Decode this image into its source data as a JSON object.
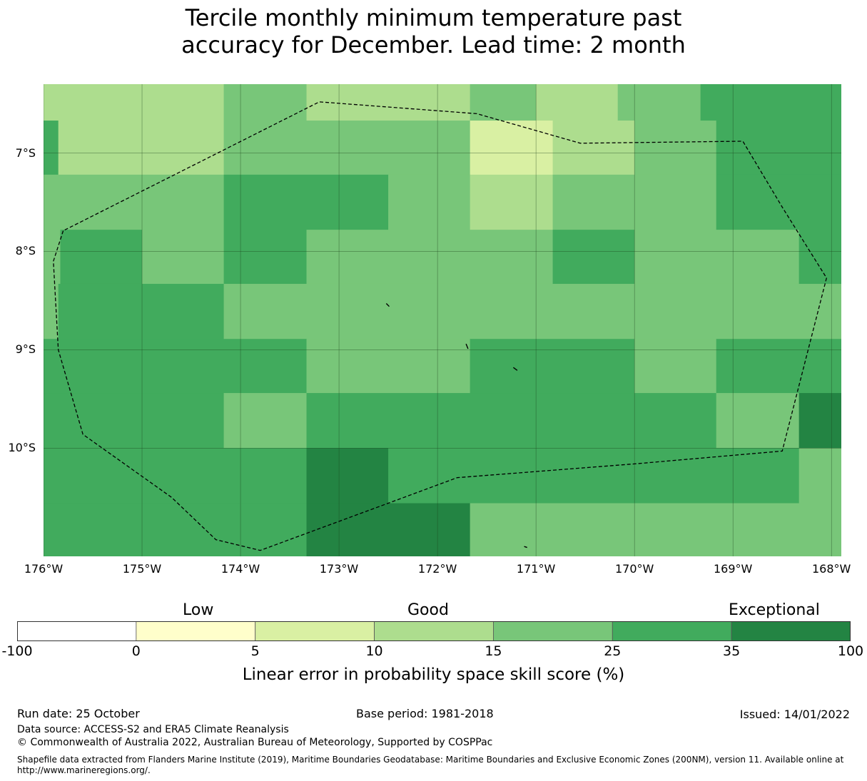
{
  "title_line1": "Tercile monthly minimum temperature past",
  "title_line2": "accuracy for December. Lead time: 2 month",
  "chart_data": {
    "type": "heatmap",
    "lon_range": [
      -176.0,
      -167.9
    ],
    "lat_range": [
      -11.1,
      -6.3
    ],
    "lat_ticks": [
      "7°S",
      "8°S",
      "9°S",
      "10°S"
    ],
    "lon_ticks": [
      "176°W",
      "175°W",
      "174°W",
      "173°W",
      "172°W",
      "171°W",
      "170°W",
      "169°W",
      "168°W"
    ],
    "cells": [
      {
        "lon": [
          -176.0,
          -174.17
        ],
        "lat": [
          -6.67,
          -6.3
        ],
        "value": 12
      },
      {
        "lon": [
          -174.17,
          -173.33
        ],
        "lat": [
          -6.67,
          -6.3
        ],
        "value": 18
      },
      {
        "lon": [
          -173.33,
          -171.67
        ],
        "lat": [
          -6.67,
          -6.3
        ],
        "value": 12
      },
      {
        "lon": [
          -171.67,
          -171.0
        ],
        "lat": [
          -6.67,
          -6.3
        ],
        "value": 18
      },
      {
        "lon": [
          -171.0,
          -170.17
        ],
        "lat": [
          -6.67,
          -6.3
        ],
        "value": 12
      },
      {
        "lon": [
          -170.17,
          -169.33
        ],
        "lat": [
          -6.67,
          -6.3
        ],
        "value": 18
      },
      {
        "lon": [
          -169.33,
          -167.9
        ],
        "lat": [
          -6.67,
          -6.3
        ],
        "value": 28
      },
      {
        "lon": [
          -176.0,
          -175.85
        ],
        "lat": [
          -7.22,
          -6.67
        ],
        "value": 28
      },
      {
        "lon": [
          -175.85,
          -174.17
        ],
        "lat": [
          -7.22,
          -6.67
        ],
        "value": 12
      },
      {
        "lon": [
          -174.17,
          -171.67
        ],
        "lat": [
          -7.22,
          -6.67
        ],
        "value": 18
      },
      {
        "lon": [
          -171.67,
          -170.83
        ],
        "lat": [
          -7.22,
          -6.67
        ],
        "value": 7
      },
      {
        "lon": [
          -170.83,
          -170.0
        ],
        "lat": [
          -7.22,
          -6.67
        ],
        "value": 12
      },
      {
        "lon": [
          -170.0,
          -169.17
        ],
        "lat": [
          -7.22,
          -6.67
        ],
        "value": 18
      },
      {
        "lon": [
          -169.17,
          -167.9
        ],
        "lat": [
          -7.22,
          -6.67
        ],
        "value": 28
      },
      {
        "lon": [
          -176.0,
          -174.17
        ],
        "lat": [
          -7.78,
          -7.22
        ],
        "value": 18
      },
      {
        "lon": [
          -174.17,
          -172.5
        ],
        "lat": [
          -7.78,
          -7.22
        ],
        "value": 28
      },
      {
        "lon": [
          -172.5,
          -171.67
        ],
        "lat": [
          -7.78,
          -7.22
        ],
        "value": 18
      },
      {
        "lon": [
          -171.67,
          -170.83
        ],
        "lat": [
          -7.78,
          -7.22
        ],
        "value": 12
      },
      {
        "lon": [
          -170.83,
          -169.17
        ],
        "lat": [
          -7.78,
          -7.22
        ],
        "value": 18
      },
      {
        "lon": [
          -169.17,
          -167.9
        ],
        "lat": [
          -7.78,
          -7.22
        ],
        "value": 28
      },
      {
        "lon": [
          -176.0,
          -175.83
        ],
        "lat": [
          -8.33,
          -7.78
        ],
        "value": 18
      },
      {
        "lon": [
          -175.83,
          -175.0
        ],
        "lat": [
          -8.33,
          -7.78
        ],
        "value": 28
      },
      {
        "lon": [
          -175.0,
          -174.17
        ],
        "lat": [
          -8.33,
          -7.78
        ],
        "value": 18
      },
      {
        "lon": [
          -174.17,
          -173.33
        ],
        "lat": [
          -8.33,
          -7.78
        ],
        "value": 28
      },
      {
        "lon": [
          -173.33,
          -170.83
        ],
        "lat": [
          -8.33,
          -7.78
        ],
        "value": 18
      },
      {
        "lon": [
          -170.83,
          -170.0
        ],
        "lat": [
          -8.33,
          -7.78
        ],
        "value": 28
      },
      {
        "lon": [
          -170.0,
          -168.33
        ],
        "lat": [
          -8.33,
          -7.78
        ],
        "value": 18
      },
      {
        "lon": [
          -168.33,
          -167.9
        ],
        "lat": [
          -8.33,
          -7.78
        ],
        "value": 28
      },
      {
        "lon": [
          -176.0,
          -175.85
        ],
        "lat": [
          -8.89,
          -8.33
        ],
        "value": 18
      },
      {
        "lon": [
          -175.85,
          -174.17
        ],
        "lat": [
          -8.89,
          -8.33
        ],
        "value": 28
      },
      {
        "lon": [
          -174.17,
          -167.9
        ],
        "lat": [
          -8.89,
          -8.33
        ],
        "value": 18
      },
      {
        "lon": [
          -176.0,
          -173.33
        ],
        "lat": [
          -9.44,
          -8.89
        ],
        "value": 28
      },
      {
        "lon": [
          -173.33,
          -171.67
        ],
        "lat": [
          -9.44,
          -8.89
        ],
        "value": 18
      },
      {
        "lon": [
          -171.67,
          -170.0
        ],
        "lat": [
          -9.44,
          -8.89
        ],
        "value": 28
      },
      {
        "lon": [
          -170.0,
          -169.17
        ],
        "lat": [
          -9.44,
          -8.89
        ],
        "value": 18
      },
      {
        "lon": [
          -169.17,
          -167.9
        ],
        "lat": [
          -9.44,
          -8.89
        ],
        "value": 28
      },
      {
        "lon": [
          -176.0,
          -174.17
        ],
        "lat": [
          -10.0,
          -9.44
        ],
        "value": 28
      },
      {
        "lon": [
          -174.17,
          -173.33
        ],
        "lat": [
          -10.0,
          -9.44
        ],
        "value": 18
      },
      {
        "lon": [
          -173.33,
          -169.17
        ],
        "lat": [
          -10.0,
          -9.44
        ],
        "value": 28
      },
      {
        "lon": [
          -169.17,
          -168.33
        ],
        "lat": [
          -10.0,
          -9.44
        ],
        "value": 18
      },
      {
        "lon": [
          -168.33,
          -167.9
        ],
        "lat": [
          -10.0,
          -9.44
        ],
        "value": 40
      },
      {
        "lon": [
          -176.0,
          -173.33
        ],
        "lat": [
          -10.56,
          -10.0
        ],
        "value": 28
      },
      {
        "lon": [
          -173.33,
          -172.5
        ],
        "lat": [
          -10.56,
          -10.0
        ],
        "value": 40
      },
      {
        "lon": [
          -172.5,
          -168.33
        ],
        "lat": [
          -10.56,
          -10.0
        ],
        "value": 28
      },
      {
        "lon": [
          -168.33,
          -167.9
        ],
        "lat": [
          -10.56,
          -10.0
        ],
        "value": 18
      },
      {
        "lon": [
          -176.0,
          -173.33
        ],
        "lat": [
          -11.1,
          -10.56
        ],
        "value": 28
      },
      {
        "lon": [
          -173.33,
          -171.67
        ],
        "lat": [
          -11.1,
          -10.56
        ],
        "value": 40
      },
      {
        "lon": [
          -171.67,
          -167.9
        ],
        "lat": [
          -11.1,
          -10.56
        ],
        "value": 18
      }
    ],
    "boundary": [
      [
        -175.8,
        -7.79
      ],
      [
        -175.9,
        -8.1
      ],
      [
        -175.85,
        -9.0
      ],
      [
        -175.6,
        -9.86
      ],
      [
        -174.7,
        -10.5
      ],
      [
        -174.25,
        -10.93
      ],
      [
        -173.8,
        -11.04
      ],
      [
        -172.5,
        -10.56
      ],
      [
        -171.8,
        -10.3
      ],
      [
        -170.0,
        -10.16
      ],
      [
        -168.5,
        -10.03
      ],
      [
        -168.05,
        -8.27
      ],
      [
        -168.5,
        -7.55
      ],
      [
        -168.9,
        -6.88
      ],
      [
        -170.55,
        -6.9
      ],
      [
        -171.6,
        -6.6
      ],
      [
        -173.2,
        -6.48
      ],
      [
        -175.8,
        -7.79
      ]
    ],
    "islands": [
      [
        [
          -172.52,
          -8.53
        ],
        [
          -172.49,
          -8.56
        ]
      ],
      [
        [
          -171.71,
          -8.94
        ],
        [
          -171.69,
          -8.99
        ]
      ],
      [
        [
          -171.23,
          -9.18
        ],
        [
          -171.19,
          -9.21
        ]
      ],
      [
        [
          -171.12,
          -11.0
        ],
        [
          -171.09,
          -11.01
        ]
      ]
    ]
  },
  "colorbar": {
    "ticks": [
      "-100",
      "0",
      "5",
      "10",
      "15",
      "25",
      "35",
      "100"
    ],
    "colors": [
      "#ffffff",
      "#fffecb",
      "#d9f0a3",
      "#addd8e",
      "#78c679",
      "#41ab5d",
      "#238443"
    ],
    "categories": [
      "Low",
      "Good",
      "Exceptional"
    ],
    "label": "Linear error in probability space skill score (%)"
  },
  "footer": {
    "run_date": "Run date: 25 October",
    "base_period": "Base period: 1981-2018",
    "issued": "Issued: 14/01/2022",
    "data_source": "Data source: ACCESS-S2 and ERA5 Climate Reanalysis",
    "copyright": "© Commonwealth of Australia 2022, Australian Bureau of Meteorology, Supported by COSPPac",
    "shapefile_line1": "Shapefile data extracted from Flanders Marine Institute (2019), Maritime Boundaries Geodatabase: Maritime Boundaries and Exclusive Economic Zones (200NM), version 11. Available online at",
    "shapefile_line2": "http://www.marineregions.org/."
  }
}
